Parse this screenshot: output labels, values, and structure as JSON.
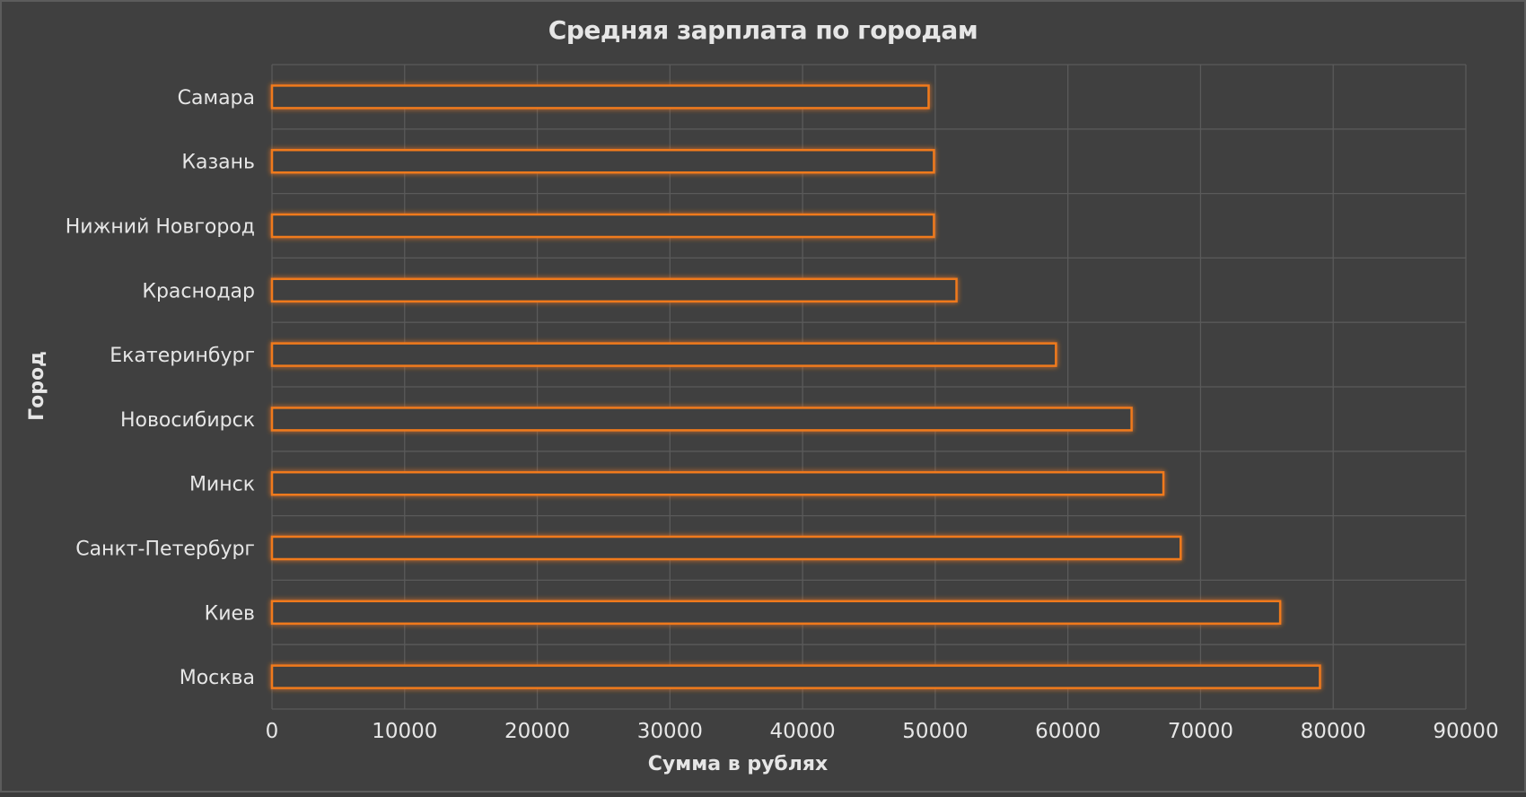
{
  "chart_data": {
    "type": "bar",
    "orientation": "horizontal",
    "title": "Средняя зарплата по городам",
    "xlabel": "Сумма в рублях",
    "ylabel": "Город",
    "categories": [
      "Самара",
      "Казань",
      "Нижний Новгород",
      "Краснодар",
      "Екатеринбург",
      "Новосибирск",
      "Минск",
      "Санкт-Петербург",
      "Киев",
      "Москва"
    ],
    "values": [
      49500,
      49900,
      49900,
      51600,
      59100,
      64800,
      67200,
      68500,
      76000,
      79000
    ],
    "xlim": [
      0,
      90000
    ],
    "xticks": [
      "0",
      "10000",
      "20000",
      "30000",
      "40000",
      "50000",
      "60000",
      "70000",
      "80000",
      "90000"
    ],
    "grid": true,
    "colors": {
      "background": "#404040",
      "bar_outline": "#f07a1e",
      "grid": "#5a5a5a",
      "text": "#e6e6e6"
    }
  }
}
